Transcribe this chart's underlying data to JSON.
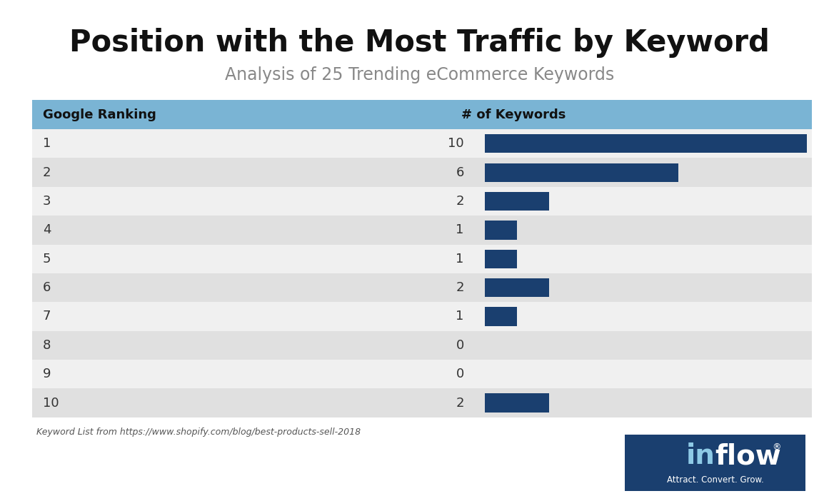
{
  "title": "Position with the Most Traffic by Keyword",
  "subtitle": "Analysis of 25 Trending eCommerce Keywords",
  "col1_header": "Google Ranking",
  "col2_header": "# of Keywords",
  "rankings": [
    1,
    2,
    3,
    4,
    5,
    6,
    7,
    8,
    9,
    10
  ],
  "keywords": [
    10,
    6,
    2,
    1,
    1,
    2,
    1,
    0,
    0,
    2
  ],
  "max_value": 10,
  "bar_color": "#1a3f6f",
  "header_bg_color": "#7ab4d4",
  "row_colors": [
    "#f0f0f0",
    "#e0e0e0"
  ],
  "header_text_color": "#111111",
  "row_text_color": "#333333",
  "background_color": "#ffffff",
  "footnote": "Keyword List from https://www.shopify.com/blog/best-products-sell-2018",
  "logo_bg_color": "#1a3f6f",
  "logo_subtext": "Attract. Convert. Grow.",
  "title_fontsize": 30,
  "subtitle_fontsize": 17,
  "header_fontsize": 13,
  "row_fontsize": 13
}
